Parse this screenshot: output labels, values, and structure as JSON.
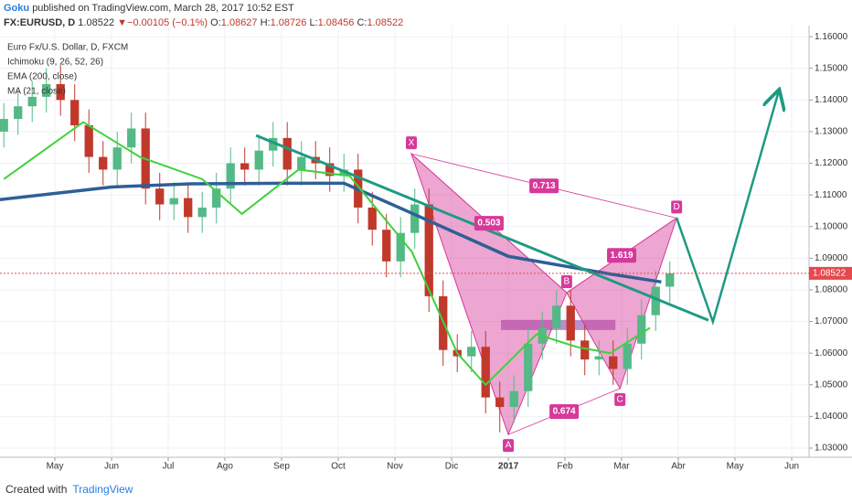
{
  "header": {
    "author": "Goku",
    "published": "published on TradingView.com, March 28, 2017 10:52 EST",
    "symbol": "FX:EURUSD, D",
    "price": "1.08522",
    "arrow": "▼",
    "change": "−0.00105 (−0.1%)",
    "o_label": "O:",
    "o": "1.08627",
    "h_label": "H:",
    "h": "1.08726",
    "l_label": "L:",
    "l": "1.08456",
    "c_label": "C:",
    "c": "1.08522"
  },
  "footer": {
    "created": "Created with",
    "brand": "TradingView"
  },
  "chart_data": {
    "type": "candlestick",
    "title": "Euro Fx/U.S. Dollar, D, FXCM",
    "indicator_labels": [
      "Ichimoku (9, 26, 52, 26)"
    ],
    "up_color": "#53b987",
    "down_color": "#c0392b",
    "x": [
      -0.9,
      -0.65,
      -0.4,
      -0.15,
      0.1,
      0.35,
      0.6,
      0.85,
      1.1,
      1.35,
      1.6,
      1.85,
      2.1,
      2.35,
      2.6,
      2.85,
      3.1,
      3.35,
      3.6,
      3.85,
      4.1,
      4.35,
      4.6,
      4.85,
      5.1,
      5.35,
      5.6,
      5.85,
      6.1,
      6.35,
      6.6,
      6.85,
      7.1,
      7.35,
      7.6,
      7.85,
      8.1,
      8.35,
      8.6,
      8.85,
      9.1,
      9.35,
      9.6,
      9.85,
      10.1,
      10.35,
      10.6,
      10.85
    ],
    "open": [
      1.13,
      1.134,
      1.138,
      1.141,
      1.145,
      1.14,
      1.132,
      1.122,
      1.118,
      1.125,
      1.131,
      1.112,
      1.107,
      1.109,
      1.103,
      1.106,
      1.112,
      1.12,
      1.118,
      1.124,
      1.128,
      1.118,
      1.122,
      1.12,
      1.116,
      1.118,
      1.106,
      1.099,
      1.089,
      1.098,
      1.107,
      1.078,
      1.061,
      1.059,
      1.062,
      1.046,
      1.043,
      1.048,
      1.063,
      1.068,
      1.075,
      1.064,
      1.058,
      1.059,
      1.055,
      1.063,
      1.072,
      1.081
    ],
    "high": [
      1.139,
      1.143,
      1.146,
      1.15,
      1.151,
      1.145,
      1.137,
      1.127,
      1.13,
      1.136,
      1.136,
      1.117,
      1.114,
      1.114,
      1.111,
      1.117,
      1.125,
      1.125,
      1.129,
      1.133,
      1.133,
      1.127,
      1.127,
      1.125,
      1.123,
      1.123,
      1.111,
      1.104,
      1.103,
      1.112,
      1.112,
      1.083,
      1.066,
      1.067,
      1.067,
      1.051,
      1.053,
      1.068,
      1.073,
      1.08,
      1.08,
      1.069,
      1.064,
      1.064,
      1.068,
      1.077,
      1.086,
      1.089
    ],
    "low": [
      1.125,
      1.129,
      1.133,
      1.136,
      1.135,
      1.127,
      1.117,
      1.113,
      1.113,
      1.12,
      1.107,
      1.102,
      1.102,
      1.098,
      1.098,
      1.101,
      1.107,
      1.113,
      1.113,
      1.119,
      1.113,
      1.113,
      1.115,
      1.111,
      1.111,
      1.101,
      1.094,
      1.084,
      1.084,
      1.093,
      1.073,
      1.056,
      1.054,
      1.054,
      1.041,
      1.035,
      1.038,
      1.043,
      1.058,
      1.063,
      1.059,
      1.053,
      1.053,
      1.05,
      1.05,
      1.058,
      1.067,
      1.076
    ],
    "close": [
      1.134,
      1.138,
      1.141,
      1.145,
      1.14,
      1.132,
      1.122,
      1.118,
      1.125,
      1.131,
      1.112,
      1.107,
      1.109,
      1.103,
      1.106,
      1.112,
      1.12,
      1.118,
      1.124,
      1.128,
      1.118,
      1.122,
      1.12,
      1.116,
      1.118,
      1.106,
      1.099,
      1.089,
      1.098,
      1.107,
      1.078,
      1.061,
      1.059,
      1.062,
      1.046,
      1.043,
      1.048,
      1.063,
      1.068,
      1.075,
      1.064,
      1.058,
      1.059,
      1.055,
      1.063,
      1.072,
      1.081,
      1.08522
    ],
    "overlays": [
      {
        "name": "EMA (200, close)",
        "color": "#2f5f96",
        "x": [
          -0.97,
          1,
          2.4,
          4,
          5.1,
          6.2,
          8,
          9.8,
          10.7
        ],
        "values": [
          1.1085,
          1.1125,
          1.1135,
          1.1137,
          1.1137,
          1.105,
          1.0906,
          1.085,
          1.0825
        ]
      },
      {
        "name": "MA (21, close)",
        "color": "#3fd13f",
        "x": [
          -0.9,
          0.5,
          1.5,
          2.6,
          3.3,
          4.3,
          5.2,
          6.3,
          7.1,
          7.6,
          8.5,
          9.2,
          9.8,
          10.5
        ],
        "values": [
          1.115,
          1.133,
          1.122,
          1.115,
          1.104,
          1.118,
          1.116,
          1.092,
          1.06,
          1.05,
          1.066,
          1.062,
          1.06,
          1.068
        ]
      }
    ],
    "last_price": 1.08522,
    "last_price_color": "#e5484d",
    "pattern": {
      "color": "#d6399a",
      "points": [
        {
          "label": "X",
          "x": 6.29,
          "value": 1.123
        },
        {
          "label": "A",
          "x": 8.0,
          "value": 1.0343
        },
        {
          "label": "B",
          "x": 9.03,
          "value": 1.0791
        },
        {
          "label": "C",
          "x": 9.97,
          "value": 1.0488
        },
        {
          "label": "D",
          "x": 10.97,
          "value": 1.1027
        }
      ],
      "ratios": [
        0.503,
        0.713,
        1.619,
        0.674
      ]
    },
    "zone": {
      "color": "#8e44ad",
      "x": [
        7.87,
        9.89
      ],
      "values": [
        1.0705,
        1.0673
      ]
    },
    "trendline": {
      "color": "#1e9a82",
      "x": [
        3.55,
        11.53
      ],
      "values": [
        1.1288,
        1.0704
      ]
    },
    "projection": {
      "color": "#1e9a82",
      "x": [
        10.97,
        11.61,
        12.77
      ],
      "values": [
        1.1027,
        1.0699,
        1.1427
      ]
    },
    "xlim": [
      -0.968,
      13.306
    ],
    "ylim": [
      1.0271,
      1.1635
    ],
    "xticks": [
      {
        "value": 0,
        "label": "May"
      },
      {
        "value": 1,
        "label": "Jun"
      },
      {
        "value": 2,
        "label": "Jul"
      },
      {
        "value": 3,
        "label": "Ago"
      },
      {
        "value": 4,
        "label": "Sep"
      },
      {
        "value": 5,
        "label": "Oct"
      },
      {
        "value": 6,
        "label": "Nov"
      },
      {
        "value": 7,
        "label": "Dic"
      },
      {
        "value": 8,
        "label": "2017"
      },
      {
        "value": 9,
        "label": "Feb"
      },
      {
        "value": 10,
        "label": "Mar"
      },
      {
        "value": 11,
        "label": "Abr"
      },
      {
        "value": 12,
        "label": "May"
      },
      {
        "value": 13,
        "label": "Jun"
      }
    ],
    "yticks": [
      {
        "value": 1.03,
        "label": "1.03000"
      },
      {
        "value": 1.04,
        "label": "1.04000"
      },
      {
        "value": 1.05,
        "label": "1.05000"
      },
      {
        "value": 1.06,
        "label": "1.06000"
      },
      {
        "value": 1.07,
        "label": "1.07000"
      },
      {
        "value": 1.08,
        "label": "1.08000"
      },
      {
        "value": 1.09,
        "label": "1.09000"
      },
      {
        "value": 1.1,
        "label": "1.10000"
      },
      {
        "value": 1.11,
        "label": "1.11000"
      },
      {
        "value": 1.12,
        "label": "1.12000"
      },
      {
        "value": 1.13,
        "label": "1.13000"
      },
      {
        "value": 1.14,
        "label": "1.14000"
      },
      {
        "value": 1.15,
        "label": "1.15000"
      },
      {
        "value": 1.16,
        "label": "1.16000"
      }
    ],
    "grid": true
  }
}
